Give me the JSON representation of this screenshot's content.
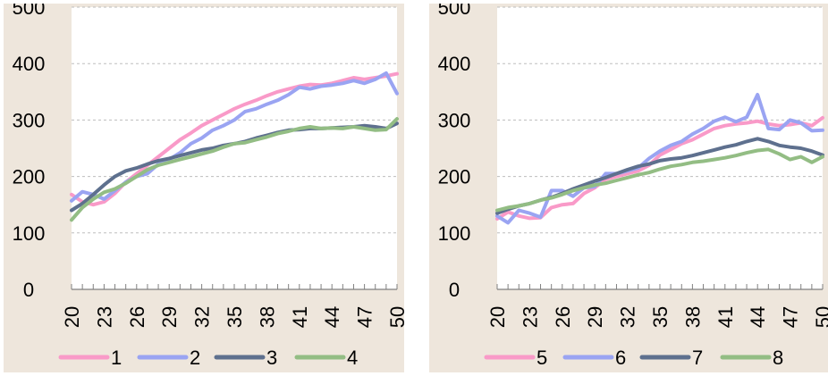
{
  "colors": {
    "series1": "#F99AC8",
    "series2": "#9AA4F2",
    "series3": "#5E708E",
    "series4": "#93BD84",
    "series5": "#F99AC8",
    "series6": "#9AA4F2",
    "series7": "#5E708E",
    "series8": "#93BD84"
  },
  "chart_data": [
    {
      "type": "line",
      "title": "",
      "xlabel": "",
      "ylabel": "",
      "ylim": [
        0,
        500
      ],
      "yticks": [
        "0",
        "100",
        "200",
        "300",
        "400",
        "500"
      ],
      "x": [
        20,
        21,
        22,
        23,
        24,
        25,
        26,
        27,
        28,
        29,
        30,
        31,
        32,
        33,
        34,
        35,
        36,
        37,
        38,
        39,
        40,
        41,
        42,
        43,
        44,
        45,
        46,
        47,
        48,
        49,
        50
      ],
      "xtick_labels": [
        "20",
        "23",
        "26",
        "29",
        "32",
        "35",
        "38",
        "41",
        "44",
        "47",
        "50"
      ],
      "grid": true,
      "legend": "bottom",
      "series": [
        {
          "name": "1",
          "values": [
            168,
            155,
            150,
            155,
            170,
            190,
            205,
            220,
            235,
            250,
            265,
            277,
            290,
            300,
            310,
            320,
            328,
            335,
            343,
            350,
            355,
            360,
            363,
            362,
            365,
            370,
            375,
            372,
            375,
            378,
            382
          ]
        },
        {
          "name": "2",
          "values": [
            157,
            173,
            168,
            160,
            175,
            190,
            200,
            205,
            222,
            230,
            242,
            258,
            268,
            282,
            290,
            300,
            315,
            320,
            328,
            335,
            345,
            358,
            355,
            360,
            362,
            365,
            370,
            365,
            372,
            383,
            347
          ]
        },
        {
          "name": "3",
          "values": [
            140,
            152,
            168,
            185,
            200,
            210,
            215,
            222,
            228,
            232,
            237,
            242,
            247,
            250,
            255,
            258,
            262,
            268,
            273,
            278,
            282,
            283,
            285,
            285,
            286,
            287,
            288,
            290,
            288,
            285,
            294
          ]
        },
        {
          "name": "4",
          "values": [
            123,
            145,
            160,
            172,
            178,
            188,
            200,
            212,
            220,
            225,
            230,
            235,
            240,
            245,
            252,
            258,
            260,
            265,
            270,
            276,
            280,
            285,
            288,
            285,
            286,
            285,
            288,
            285,
            282,
            283,
            302
          ]
        }
      ]
    },
    {
      "type": "line",
      "title": "",
      "xlabel": "",
      "ylabel": "",
      "ylim": [
        0,
        500
      ],
      "yticks": [
        "0",
        "100",
        "200",
        "300",
        "400",
        "500"
      ],
      "x": [
        20,
        21,
        22,
        23,
        24,
        25,
        26,
        27,
        28,
        29,
        30,
        31,
        32,
        33,
        34,
        35,
        36,
        37,
        38,
        39,
        40,
        41,
        42,
        43,
        44,
        45,
        46,
        47,
        48,
        49,
        50
      ],
      "xtick_labels": [
        "20",
        "23",
        "26",
        "29",
        "32",
        "35",
        "38",
        "41",
        "44",
        "47",
        "50"
      ],
      "grid": true,
      "legend": "bottom",
      "series": [
        {
          "name": "5",
          "values": [
            125,
            137,
            130,
            126,
            127,
            145,
            150,
            152,
            170,
            180,
            195,
            200,
            205,
            210,
            220,
            238,
            248,
            258,
            265,
            275,
            285,
            290,
            293,
            295,
            298,
            293,
            290,
            292,
            295,
            290,
            304
          ]
        },
        {
          "name": "6",
          "values": [
            130,
            118,
            140,
            135,
            128,
            175,
            175,
            165,
            180,
            182,
            205,
            205,
            210,
            215,
            232,
            245,
            255,
            262,
            275,
            285,
            298,
            305,
            297,
            305,
            345,
            285,
            283,
            300,
            295,
            281,
            282
          ]
        },
        {
          "name": "7",
          "values": [
            135,
            142,
            148,
            152,
            158,
            163,
            170,
            178,
            185,
            192,
            198,
            205,
            212,
            218,
            222,
            228,
            231,
            233,
            237,
            242,
            247,
            252,
            256,
            262,
            267,
            262,
            255,
            252,
            250,
            245,
            238
          ]
        },
        {
          "name": "8",
          "values": [
            140,
            145,
            148,
            152,
            158,
            162,
            168,
            175,
            180,
            185,
            188,
            193,
            198,
            203,
            207,
            213,
            218,
            221,
            225,
            227,
            230,
            233,
            237,
            242,
            246,
            248,
            240,
            230,
            235,
            225,
            235
          ]
        }
      ]
    }
  ]
}
